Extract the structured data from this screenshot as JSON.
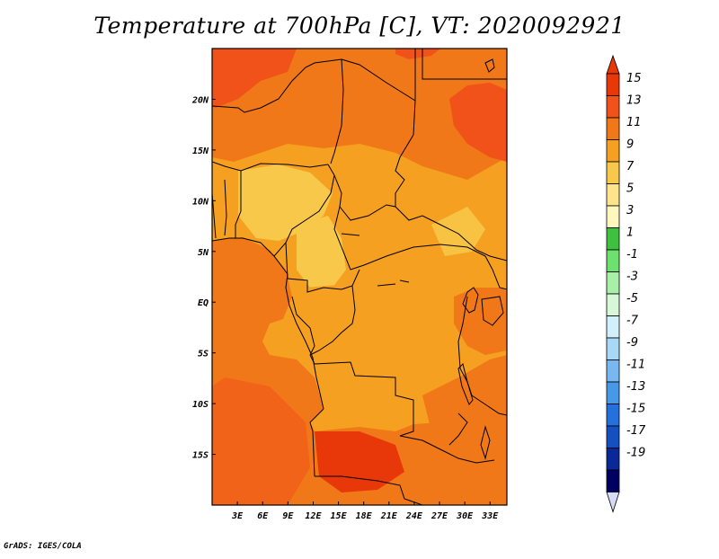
{
  "title": "Temperature at 700hPa [C], VT: 2020092921",
  "credit": "GrADS: IGES/COLA",
  "map": {
    "lon_min": 0,
    "lon_max": 35,
    "lat_min": -20,
    "lat_max": 25,
    "lon_ticks": [
      {
        "value": 3,
        "label": "3E"
      },
      {
        "value": 6,
        "label": "6E"
      },
      {
        "value": 9,
        "label": "9E"
      },
      {
        "value": 12,
        "label": "12E"
      },
      {
        "value": 15,
        "label": "15E"
      },
      {
        "value": 18,
        "label": "18E"
      },
      {
        "value": 21,
        "label": "21E"
      },
      {
        "value": 24,
        "label": "24E"
      },
      {
        "value": 27,
        "label": "27E"
      },
      {
        "value": 30,
        "label": "30E"
      },
      {
        "value": 33,
        "label": "33E"
      }
    ],
    "lat_ticks": [
      {
        "value": 20,
        "label": "20N"
      },
      {
        "value": 15,
        "label": "15N"
      },
      {
        "value": 10,
        "label": "10N"
      },
      {
        "value": 5,
        "label": "5N"
      },
      {
        "value": 0,
        "label": "EQ"
      },
      {
        "value": -5,
        "label": "5S"
      },
      {
        "value": -10,
        "label": "10S"
      },
      {
        "value": -15,
        "label": "15S"
      }
    ]
  },
  "colorbar": {
    "levels": [
      "15",
      "13",
      "11",
      "9",
      "7",
      "5",
      "3",
      "1",
      "-1",
      "-3",
      "-5",
      "-7",
      "-9",
      "-11",
      "-13",
      "-15",
      "-17",
      "-19"
    ],
    "colors": [
      "#e8380a",
      "#f0521a",
      "#f07818",
      "#f5a020",
      "#f8c84a",
      "#fde38c",
      "#fff7be",
      "#40c040",
      "#6ee06e",
      "#a8f0a8",
      "#d6f8d6",
      "#d2f0fb",
      "#a8d8f5",
      "#78b8f0",
      "#4898e8",
      "#2470dc",
      "#1450c0",
      "#0a2898",
      "#000060"
    ],
    "top_cap": "#e8380a",
    "bottom_cap": "#d6dcf8"
  }
}
